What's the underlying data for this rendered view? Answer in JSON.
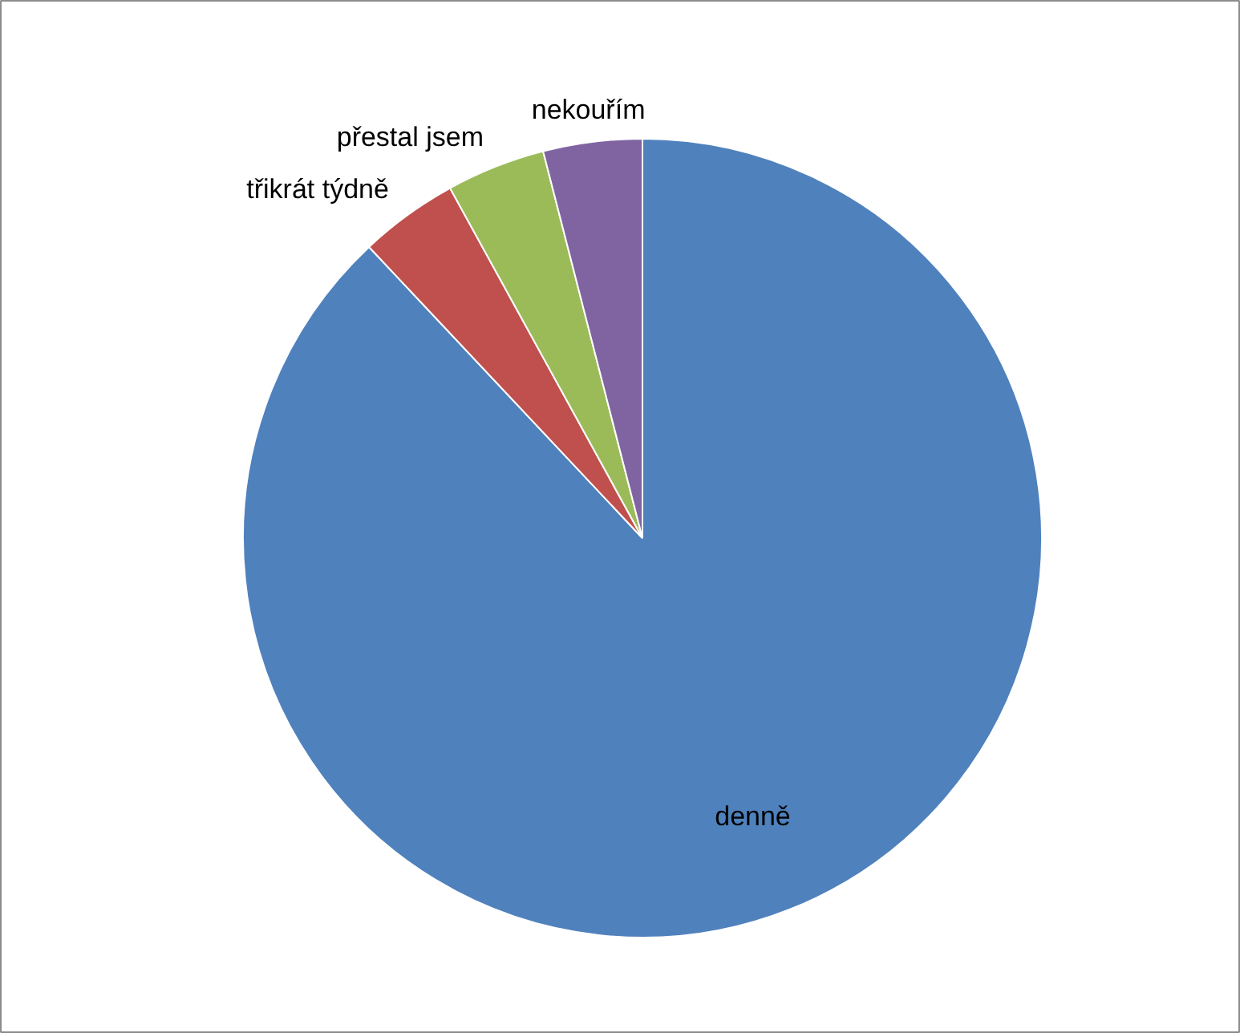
{
  "chart_data": {
    "type": "pie",
    "categories": [
      "denně",
      "třikrát týdně",
      "přestal jsem",
      "nekouřím"
    ],
    "values": [
      88,
      4,
      4,
      4
    ],
    "colors": [
      "#4f81bd",
      "#c0504d",
      "#9bbb59",
      "#8064a2"
    ]
  }
}
